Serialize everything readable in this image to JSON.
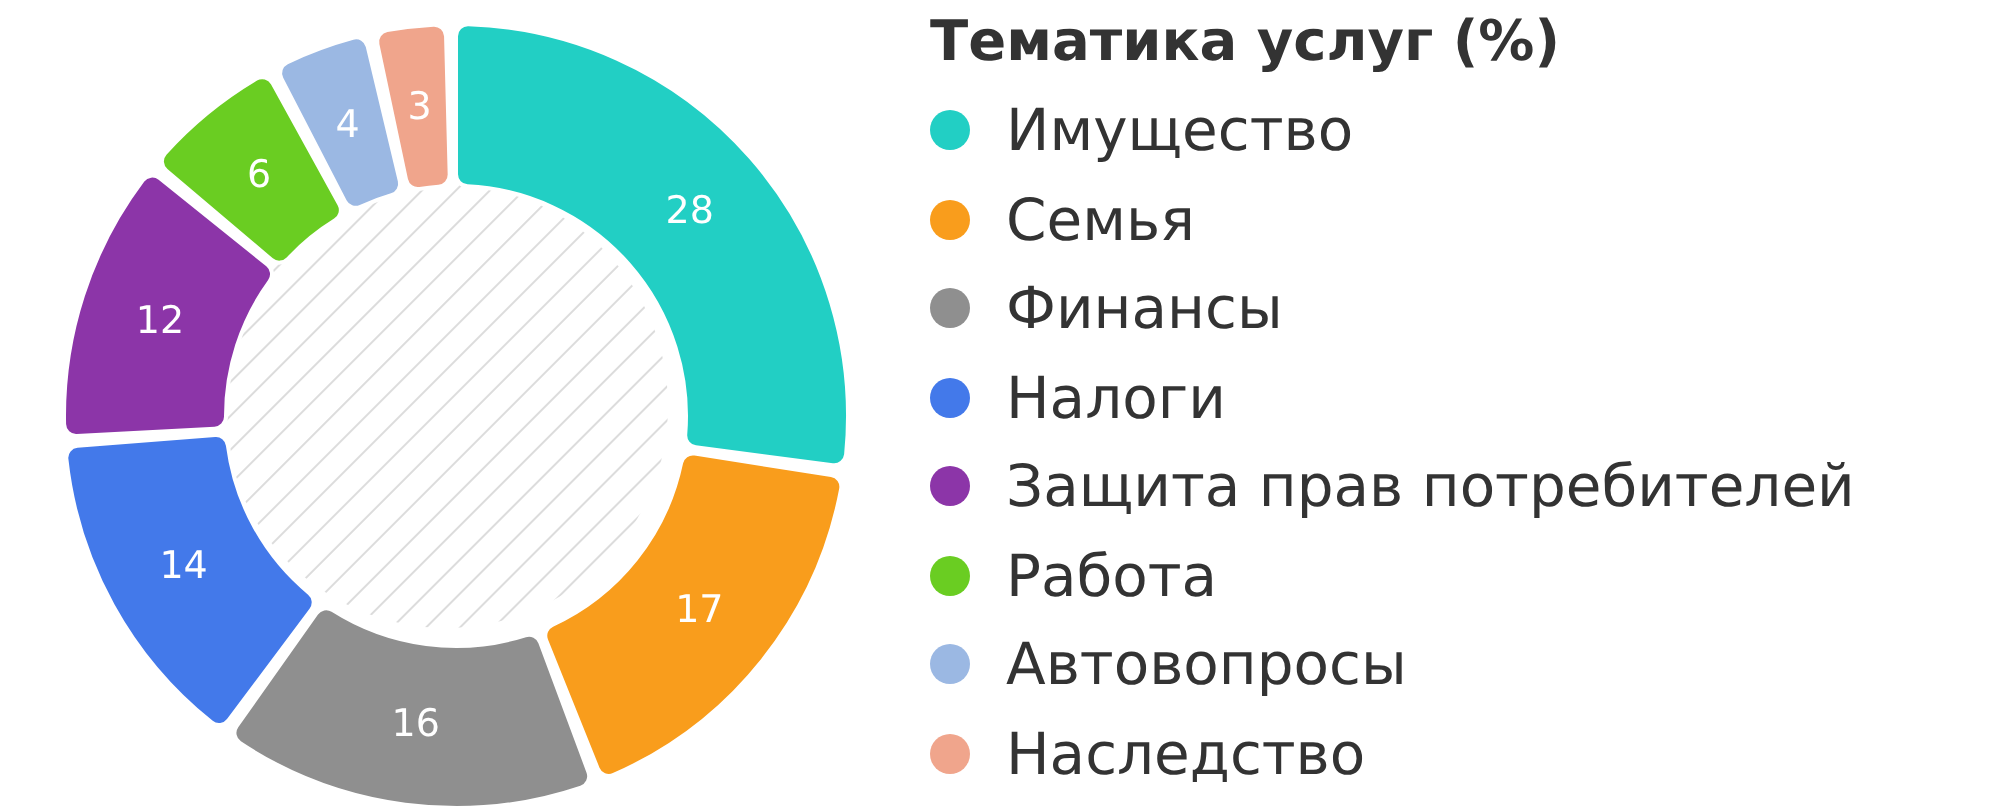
{
  "chart_data": {
    "type": "donut",
    "legend_title": "Тематика услуг (%)",
    "categories": [
      "Имущество",
      "Семья",
      "Финансы",
      "Налоги",
      "Защита прав потребителей",
      "Работа",
      "Автовопросы",
      "Наследство"
    ],
    "values": [
      28,
      17,
      16,
      14,
      12,
      6,
      4,
      3
    ],
    "colors": [
      "#22cfc4",
      "#f99d1c",
      "#8f8f8f",
      "#4379ea",
      "#8c35a8",
      "#6acd22",
      "#9bb8e3",
      "#f0a58c"
    ],
    "data_labels": true,
    "legend": "right"
  }
}
